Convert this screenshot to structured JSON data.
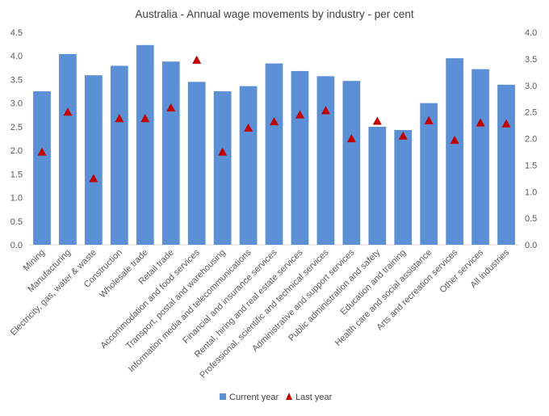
{
  "chart_data": {
    "type": "bar",
    "title": "Australia - Annual wage movements by industry - per cent",
    "categories": [
      "Mining",
      "Manufacturing",
      "Electricity, gas, water & waste",
      "Construction",
      "Wholesale trade",
      "Retail trade",
      "Accommodation and food services",
      "Transport, postal and warehousing",
      "Information media and telecommunications",
      "Financial and insurance services",
      "Rental, hiring and real estate services",
      "Professional, scientific and technical services",
      "Administrative and support services",
      "Public administration and safety",
      "Education and training",
      "Health care and social assistance",
      "Arts and recreation services",
      "Other services",
      "All industries"
    ],
    "series": [
      {
        "name": "Current year",
        "kind": "bar",
        "axis": "left",
        "color": "#5B8FD6",
        "values": [
          3.25,
          4.04,
          3.59,
          3.79,
          4.23,
          3.88,
          3.45,
          3.25,
          3.36,
          3.84,
          3.68,
          3.57,
          3.47,
          2.5,
          2.43,
          3.0,
          3.95,
          3.72,
          3.39
        ]
      },
      {
        "name": "Last year",
        "kind": "marker",
        "axis": "right",
        "color": "#C00000",
        "values": [
          1.75,
          2.5,
          1.25,
          2.38,
          2.38,
          2.58,
          3.48,
          1.75,
          2.2,
          2.32,
          2.45,
          2.53,
          2.0,
          2.33,
          2.05,
          2.34,
          1.97,
          2.3,
          2.28
        ]
      }
    ],
    "y_left": {
      "min": 0,
      "max": 4.5,
      "step": 0.5,
      "ticks": [
        "0.0",
        "0.5",
        "1.0",
        "1.5",
        "2.0",
        "2.5",
        "3.0",
        "3.5",
        "4.0",
        "4.5"
      ]
    },
    "y_right": {
      "min": 0,
      "max": 4.0,
      "step": 0.5,
      "ticks": [
        "0.0",
        "0.5",
        "1.0",
        "1.5",
        "2.0",
        "2.5",
        "3.0",
        "3.5",
        "4.0"
      ]
    },
    "grid": false,
    "legend_position": "bottom"
  }
}
